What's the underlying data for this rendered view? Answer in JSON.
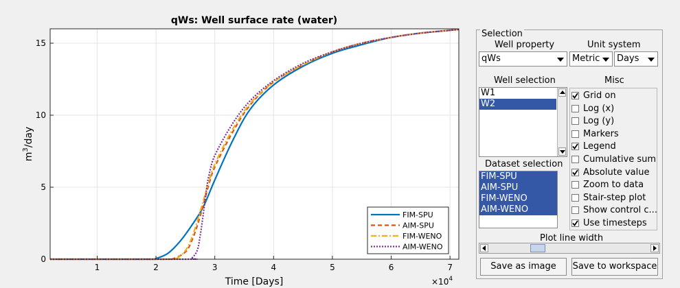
{
  "chart_data": {
    "type": "line",
    "title": "qWs: Well surface rate (water)",
    "xlabel": "Time [Days]",
    "ylabel": "m³/day",
    "ylabel_base": "m",
    "ylabel_sup": "3",
    "ylabel_rest": "/day",
    "x_exponent_label": "×10",
    "x_exponent": "4",
    "xlim": [
      0.2,
      7.15
    ],
    "ylim": [
      0,
      16
    ],
    "xticks": [
      1,
      2,
      3,
      4,
      5,
      6,
      7
    ],
    "yticks": [
      0,
      5,
      10,
      15
    ],
    "xtick_labels": [
      "1",
      "2",
      "3",
      "4",
      "5",
      "6",
      "7"
    ],
    "ytick_labels": [
      "0",
      "5",
      "10",
      "15"
    ],
    "grid": true,
    "legend_position": "bottom-right",
    "series": [
      {
        "name": "FIM-SPU",
        "color": "#0072bd",
        "dash": "solid",
        "x": [
          0.2,
          1.9,
          2.0,
          2.2,
          2.4,
          2.6,
          2.8,
          3.0,
          3.3,
          3.6,
          4.0,
          4.5,
          5.0,
          5.5,
          6.0,
          6.5,
          7.15
        ],
        "y": [
          0,
          0,
          0.05,
          0.4,
          1.2,
          2.3,
          3.6,
          5.5,
          8.2,
          10.4,
          12.1,
          13.4,
          14.3,
          14.9,
          15.4,
          15.7,
          15.95
        ]
      },
      {
        "name": "AIM-SPU",
        "color": "#d95319",
        "dash": "6,4",
        "x": [
          0.2,
          2.1,
          2.3,
          2.5,
          2.6,
          2.7,
          2.8,
          2.9,
          3.0,
          3.3,
          3.6,
          4.0,
          4.5,
          5.0,
          5.5,
          6.0,
          6.5,
          7.15
        ],
        "y": [
          0,
          0,
          0.05,
          0.5,
          1.2,
          2.3,
          3.7,
          5.2,
          6.4,
          8.8,
          10.7,
          12.3,
          13.5,
          14.4,
          15.0,
          15.4,
          15.7,
          15.95
        ]
      },
      {
        "name": "FIM-WENO",
        "color": "#edb120",
        "dash": "8,3,2,3",
        "x": [
          0.2,
          2.2,
          2.35,
          2.5,
          2.6,
          2.7,
          2.8,
          2.9,
          3.0,
          3.3,
          3.6,
          4.0,
          4.5,
          5.0,
          5.5,
          6.0,
          6.5,
          7.15
        ],
        "y": [
          0,
          0,
          0.05,
          0.6,
          1.4,
          2.6,
          4.0,
          5.4,
          6.6,
          9.0,
          10.8,
          12.3,
          13.5,
          14.4,
          15.0,
          15.4,
          15.7,
          15.95
        ]
      },
      {
        "name": "AIM-WENO",
        "color": "#7e2f8e",
        "dash": "2,2",
        "x": [
          0.2,
          2.5,
          2.6,
          2.7,
          2.75,
          2.8,
          2.85,
          2.9,
          3.0,
          3.3,
          3.6,
          4.0,
          4.5,
          5.0,
          5.5,
          6.0,
          6.5,
          7.15
        ],
        "y": [
          0,
          0,
          0.05,
          0.6,
          1.6,
          3.0,
          4.6,
          5.8,
          7.2,
          9.4,
          11.0,
          12.4,
          13.6,
          14.4,
          15.0,
          15.4,
          15.7,
          15.95
        ]
      }
    ]
  },
  "panel": {
    "title": "Selection",
    "well_property_label": "Well property",
    "unit_system_label": "Unit system",
    "well_property_value": "qWs",
    "unit_value": "Metric",
    "time_unit_value": "Days",
    "well_selection_label": "Well selection",
    "wells": [
      {
        "name": "W1",
        "selected": false
      },
      {
        "name": "W2",
        "selected": true
      }
    ],
    "misc_label": "Misc",
    "misc": [
      {
        "label": "Grid on",
        "checked": true
      },
      {
        "label": "Log (x)",
        "checked": false
      },
      {
        "label": "Log (y)",
        "checked": false
      },
      {
        "label": "Markers",
        "checked": false
      },
      {
        "label": "Legend",
        "checked": true
      },
      {
        "label": "Cumulative sum",
        "checked": false
      },
      {
        "label": "Absolute value",
        "checked": true
      },
      {
        "label": "Zoom to data",
        "checked": false
      },
      {
        "label": "Stair-step plot",
        "checked": false
      },
      {
        "label": "Show control c...",
        "checked": false
      },
      {
        "label": "Use timesteps",
        "checked": true
      }
    ],
    "dataset_selection_label": "Dataset selection",
    "datasets": [
      {
        "name": "FIM-SPU",
        "selected": true
      },
      {
        "name": "AIM-SPU",
        "selected": true
      },
      {
        "name": "FIM-WENO",
        "selected": true
      },
      {
        "name": "AIM-WENO",
        "selected": true
      }
    ],
    "line_width_label": "Plot line width",
    "line_width_fraction": 0.28,
    "save_image_label": "Save as image",
    "save_workspace_label": "Save to workspace"
  }
}
